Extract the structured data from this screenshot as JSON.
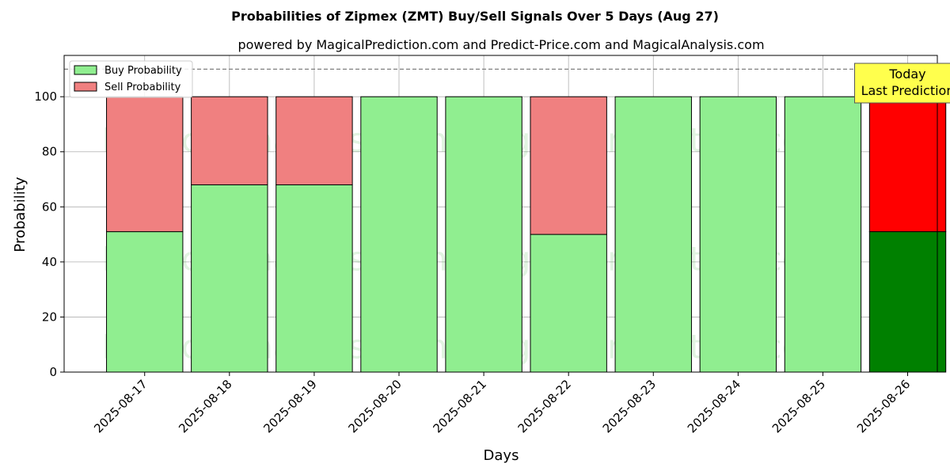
{
  "chart_data": {
    "type": "bar",
    "stacked": true,
    "title": "Probabilities of Zipmex (ZMT) Buy/Sell Signals Over 5 Days (Aug 27)",
    "subtitle": "powered by MagicalPrediction.com and Predict-Price.com and MagicalAnalysis.com",
    "xlabel": "Days",
    "ylabel": "Probability",
    "ylim": [
      0,
      115
    ],
    "yticks": [
      0,
      20,
      40,
      60,
      80,
      100
    ],
    "grid": true,
    "legend_position": "top-left",
    "reference_line": 110,
    "categories": [
      "2025-08-17",
      "2025-08-18",
      "2025-08-19",
      "2025-08-20",
      "2025-08-21",
      "2025-08-22",
      "2025-08-23",
      "2025-08-24",
      "2025-08-25",
      "2025-08-26"
    ],
    "series": [
      {
        "name": "Buy Probability",
        "color": "#90ee90",
        "highlight_color": "#008000",
        "values": [
          51,
          68,
          68,
          100,
          100,
          50,
          100,
          100,
          100,
          51
        ]
      },
      {
        "name": "Sell Probability",
        "color": "#f08080",
        "highlight_color": "#ff0000",
        "values": [
          49,
          32,
          32,
          0,
          0,
          50,
          0,
          0,
          0,
          49
        ]
      }
    ],
    "highlight_index": 9,
    "annotation": {
      "lines": [
        "Today",
        "Last Prediction"
      ],
      "background": "#ffff4d"
    },
    "watermarks": [
      "MagicalAnalysis.com",
      "MagicalPrediction.com"
    ]
  }
}
